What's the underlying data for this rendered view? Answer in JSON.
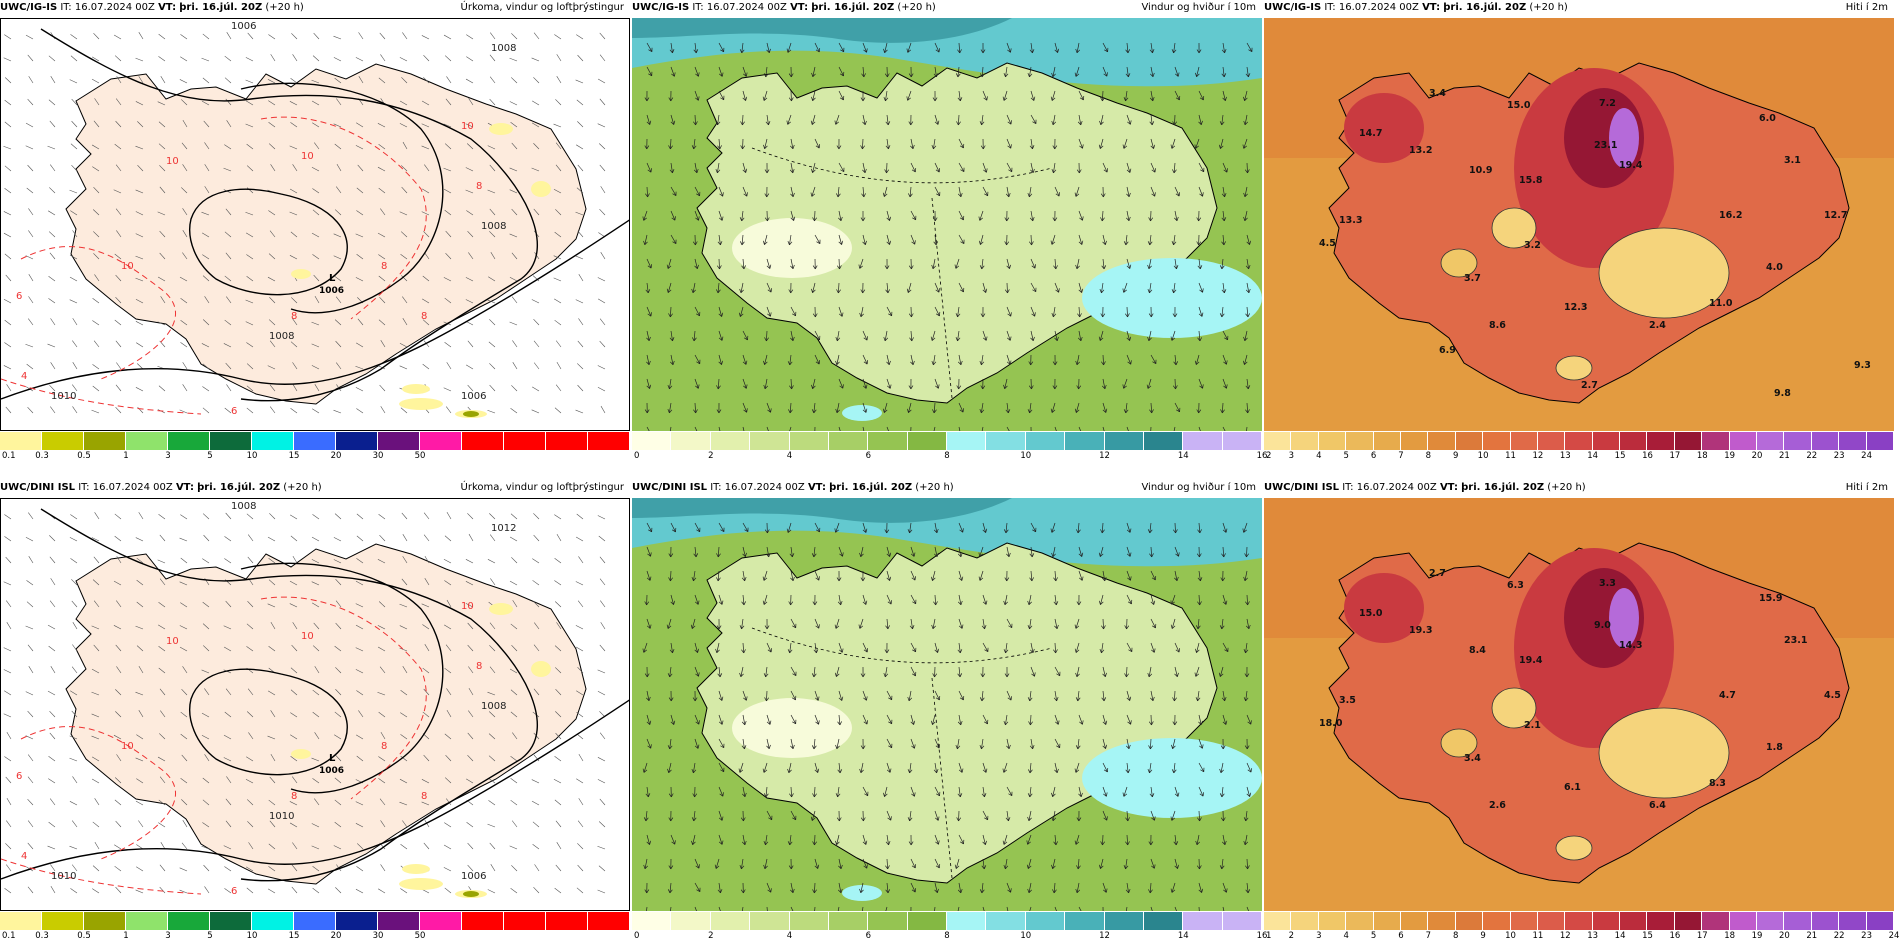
{
  "panels": [
    {
      "id": "p1",
      "type": "precip",
      "model": "UWC/IG-IS",
      "it": "IT: 16.07.2024 00Z",
      "vt_label": "VT:",
      "vt": "þri. 16.júl. 20Z",
      "lead": "(+20 h)",
      "title": "Úrkoma, vindur og loftþrýstingur",
      "isobars": [
        "1010",
        "1008",
        "1008",
        "1008",
        "1006",
        "1006"
      ],
      "low_label": "L",
      "low_value": "1006",
      "temps": [
        "10",
        "10",
        "10",
        "8",
        "8",
        "8",
        "6",
        "6",
        "4",
        "10",
        "8"
      ],
      "colorbar": {
        "colors": [
          "#fff59d",
          "#c9cc00",
          "#99a400",
          "#8fe36b",
          "#18a83a",
          "#0d6b3b",
          "#00f2e4",
          "#3a6cff",
          "#0a1f8f",
          "#6a117c",
          "#ff1aa6",
          "#ff0000",
          "#ff0000",
          "#ff0000",
          "#ff0000"
        ],
        "ticks": [
          "0.1",
          "0.3",
          "0.5",
          "1",
          "3",
          "5",
          "10",
          "15",
          "20",
          "30",
          "50"
        ]
      }
    },
    {
      "id": "p2",
      "type": "wind",
      "model": "UWC/IG-IS",
      "it": "IT: 16.07.2024 00Z",
      "vt_label": "VT:",
      "vt": "þri. 16.júl. 20Z",
      "lead": "(+20 h)",
      "title": "Vindur og hviður í 10m",
      "colorbar": {
        "colors": [
          "#ffffe6",
          "#f3f8c8",
          "#e2f0ad",
          "#cfe595",
          "#bcdb7d",
          "#a7cf66",
          "#95c452",
          "#84b843",
          "#a6f5f5",
          "#83dfe3",
          "#63c9cf",
          "#49b1b8",
          "#379aa3",
          "#2a858e",
          "#c9b3f5",
          "#c9b3f5"
        ],
        "ticks": [
          "0",
          "2",
          "4",
          "6",
          "8",
          "10",
          "12",
          "14",
          "16"
        ]
      }
    },
    {
      "id": "p3",
      "type": "temp",
      "model": "UWC/IG-IS",
      "it": "IT: 16.07.2024 00Z",
      "vt_label": "VT:",
      "vt": "þri. 16.júl. 20Z",
      "lead": "(+20 h)",
      "title": "Hiti í 2m",
      "labels": [
        "3.4",
        "14.7",
        "13.2",
        "10.9",
        "15.0",
        "7.2",
        "6.0",
        "3.1",
        "23.1",
        "19.4",
        "15.8",
        "16.2",
        "12.7",
        "13.3",
        "4.5",
        "3.2",
        "3.7",
        "4.0",
        "11.0",
        "12.3",
        "2.4",
        "8.6",
        "6.9",
        "2.7",
        "9.8",
        "9.3"
      ],
      "colorbar": {
        "colors": [
          "#fbe49a",
          "#f5d47c",
          "#f0c767",
          "#ebb95a",
          "#e7ab4c",
          "#e39b40",
          "#e08a3a",
          "#dc7a3a",
          "#e3743e",
          "#e06a48",
          "#dc5c4a",
          "#d44a45",
          "#c93a40",
          "#bb2c3c",
          "#a81d38",
          "#951734",
          "#b0347a",
          "#c05bcc",
          "#b56ad9",
          "#a65ed6",
          "#9c52cf",
          "#9147c8",
          "#8a40c4"
        ],
        "ticks": [
          "2",
          "3",
          "4",
          "5",
          "6",
          "7",
          "8",
          "9",
          "10",
          "11",
          "12",
          "13",
          "14",
          "15",
          "16",
          "17",
          "18",
          "19",
          "20",
          "21",
          "22",
          "23",
          "24"
        ]
      }
    },
    {
      "id": "p4",
      "type": "precip",
      "model": "UWC/DINI ISL",
      "it": "IT: 16.07.2024 00Z",
      "vt_label": "VT:",
      "vt": "þri. 16.júl. 20Z",
      "lead": "(+20 h)",
      "title": "Úrkoma, vindur og loftþrýstingur",
      "isobars": [
        "1010",
        "1012",
        "1010",
        "1008",
        "1008",
        "1006"
      ],
      "low_label": "L",
      "low_value": "1006",
      "temps": [
        "10",
        "10",
        "10",
        "8",
        "8",
        "8",
        "6",
        "6",
        "4",
        "10",
        "8"
      ],
      "colorbar": {
        "colors": [
          "#fff59d",
          "#c9cc00",
          "#99a400",
          "#8fe36b",
          "#18a83a",
          "#0d6b3b",
          "#00f2e4",
          "#3a6cff",
          "#0a1f8f",
          "#6a117c",
          "#ff1aa6",
          "#ff0000",
          "#ff0000",
          "#ff0000",
          "#ff0000"
        ],
        "ticks": [
          "0.1",
          "0.3",
          "0.5",
          "1",
          "3",
          "5",
          "10",
          "15",
          "20",
          "30",
          "50"
        ]
      }
    },
    {
      "id": "p5",
      "type": "wind",
      "model": "UWC/DINI ISL",
      "it": "IT: 16.07.2024 00Z",
      "vt_label": "VT:",
      "vt": "þri. 16.júl. 20Z",
      "lead": "(+20 h)",
      "title": "Vindur og hviður í 10m",
      "colorbar": {
        "colors": [
          "#ffffe6",
          "#f3f8c8",
          "#e2f0ad",
          "#cfe595",
          "#bcdb7d",
          "#a7cf66",
          "#95c452",
          "#84b843",
          "#a6f5f5",
          "#83dfe3",
          "#63c9cf",
          "#49b1b8",
          "#379aa3",
          "#2a858e",
          "#c9b3f5",
          "#c9b3f5"
        ],
        "ticks": [
          "0",
          "2",
          "4",
          "6",
          "8",
          "10",
          "12",
          "14",
          "16"
        ]
      }
    },
    {
      "id": "p6",
      "type": "temp",
      "model": "UWC/DINI ISL",
      "it": "IT: 16.07.2024 00Z",
      "vt_label": "VT:",
      "vt": "þri. 16.júl. 20Z",
      "lead": "(+20 h)",
      "title": "Hiti í 2m",
      "labels": [
        "2.7",
        "15.0",
        "19.3",
        "8.4",
        "6.3",
        "3.3",
        "15.9",
        "23.1",
        "9.0",
        "14.3",
        "19.4",
        "4.7",
        "4.5",
        "3.5",
        "18.0",
        "2.1",
        "3.4",
        "1.8",
        "8.3",
        "6.1",
        "6.4",
        "2.6"
      ],
      "colorbar": {
        "colors": [
          "#fbe49a",
          "#f5d47c",
          "#f0c767",
          "#ebb95a",
          "#e7ab4c",
          "#e39b40",
          "#e08a3a",
          "#dc7a3a",
          "#e3743e",
          "#e06a48",
          "#dc5c4a",
          "#d44a45",
          "#c93a40",
          "#bb2c3c",
          "#a81d38",
          "#951734",
          "#b0347a",
          "#c05bcc",
          "#b56ad9",
          "#a65ed6",
          "#9c52cf",
          "#9147c8",
          "#8a40c4"
        ],
        "ticks": [
          "1",
          "2",
          "3",
          "4",
          "5",
          "6",
          "7",
          "8",
          "9",
          "10",
          "11",
          "12",
          "13",
          "14",
          "15",
          "16",
          "17",
          "18",
          "19",
          "20",
          "21",
          "22",
          "23",
          "24"
        ]
      }
    }
  ]
}
